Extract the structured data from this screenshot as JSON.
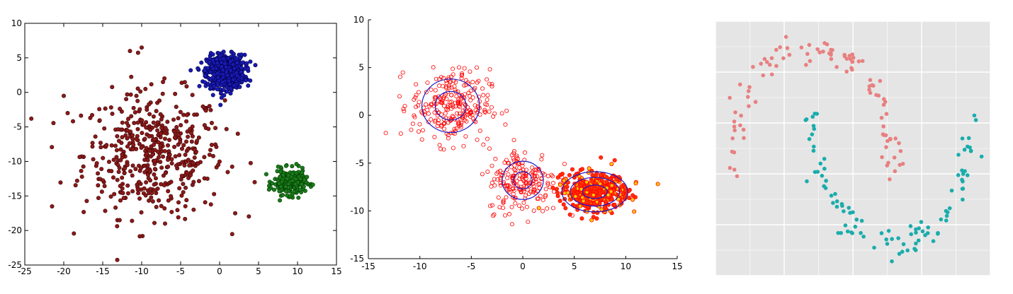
{
  "chart_data": [
    {
      "type": "scatter",
      "title": "",
      "xlabel": "",
      "ylabel": "",
      "xlim": [
        -25,
        15
      ],
      "ylim": [
        -25,
        10
      ],
      "xticks": [
        -25,
        -20,
        -15,
        -10,
        -5,
        0,
        5,
        10,
        15
      ],
      "yticks": [
        -25,
        -20,
        -15,
        -10,
        -5,
        0,
        5,
        10
      ],
      "grid": false,
      "legend": "none",
      "series": [
        {
          "color": "#8b1a1a",
          "edge": "#3a0000",
          "center": [
            -8.5,
            -9.0
          ],
          "spread": [
            4.5,
            4.5
          ],
          "count": 480
        },
        {
          "color": "#1a1ab4",
          "edge": "#00004a",
          "center": [
            0.8,
            3.0
          ],
          "spread": [
            1.2,
            1.2
          ],
          "count": 650
        },
        {
          "color": "#1a7a1a",
          "edge": "#003a00",
          "center": [
            9.0,
            -13.0
          ],
          "spread": [
            1.0,
            0.9
          ],
          "count": 300
        }
      ],
      "outliers": [
        {
          "x": -21.5,
          "y": -16.5
        },
        {
          "x": -20.0,
          "y": -0.5
        },
        {
          "x": -11.5,
          "y": 6.0
        },
        {
          "x": -10.0,
          "y": 6.5
        },
        {
          "x": -7.0,
          "y": -19.0
        },
        {
          "x": 2.0,
          "y": -17.5
        },
        {
          "x": 4.5,
          "y": -13.0
        },
        {
          "x": -19.5,
          "y": -3.0
        }
      ]
    },
    {
      "type": "scatter",
      "title": "",
      "xlabel": "",
      "ylabel": "",
      "xlim": [
        -15,
        15
      ],
      "ylim": [
        -15,
        10
      ],
      "xticks": [
        -15,
        -10,
        -5,
        0,
        5,
        10,
        15
      ],
      "yticks": [
        -15,
        -10,
        -5,
        0,
        5,
        10
      ],
      "grid": false,
      "legend": "none",
      "series": [
        {
          "color": "#ff0000",
          "fill": "none",
          "center": [
            -7.0,
            1.0
          ],
          "spread": [
            1.9,
            1.9
          ],
          "count": 260
        },
        {
          "color": "#ff0000",
          "fill": "none",
          "center": [
            0.0,
            -6.8
          ],
          "spread": [
            1.7,
            1.7
          ],
          "count": 200
        },
        {
          "color": "#ff0000",
          "fill": "#ff3300",
          "center": [
            7.0,
            -8.0
          ],
          "spread": [
            1.6,
            1.0
          ],
          "count": 450
        }
      ],
      "contours": [
        {
          "center": [
            -7.0,
            1.0
          ],
          "rx": [
            1.5,
            2.8
          ],
          "ry": [
            1.5,
            2.8
          ],
          "color": "#1c1cc8"
        },
        {
          "center": [
            0.0,
            -6.8
          ],
          "rx": [
            0.9,
            2.0
          ],
          "ry": [
            0.9,
            2.0
          ],
          "color": "#1c1cc8"
        },
        {
          "center": [
            7.0,
            -8.0
          ],
          "rx": [
            1.2,
            2.4,
            3.2
          ],
          "ry": [
            0.7,
            1.5,
            2.1
          ],
          "color": "#1c1cc8"
        }
      ]
    },
    {
      "type": "scatter",
      "title": "",
      "xlabel": "",
      "ylabel": "",
      "xlim": [
        -1.2,
        2.2
      ],
      "ylim": [
        -0.75,
        1.2
      ],
      "grid": true,
      "legend": "none",
      "series": [
        {
          "shape": "upper-moon",
          "color": "#e88080",
          "count": 100
        },
        {
          "shape": "lower-moon",
          "color": "#1aacac",
          "count": 100
        }
      ]
    }
  ]
}
